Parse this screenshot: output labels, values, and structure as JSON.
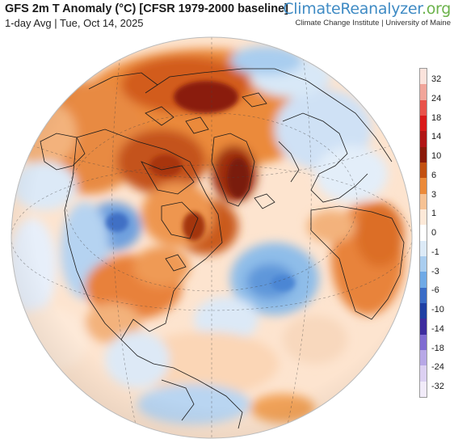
{
  "header": {
    "title": "GFS 2m T Anomaly (°C) [CFSR 1979-2000 baseline]",
    "subtitle": "1-day Avg | Tue, Oct 14, 2025"
  },
  "brand": {
    "part1": "Climate",
    "part2": "Reanalyzer",
    "part3": ".org",
    "subtitle": "Climate Change Institute | University of Maine"
  },
  "legend": {
    "labels": [
      "32",
      "24",
      "18",
      "14",
      "10",
      "6",
      "3",
      "1",
      "0",
      "-1",
      "-3",
      "-6",
      "-10",
      "-14",
      "-18",
      "-24",
      "-32"
    ],
    "colors": [
      "#fbe3dc",
      "#f1a59a",
      "#e8524a",
      "#d91a1a",
      "#b01515",
      "#8a1a0a",
      "#c24f10",
      "#eb8a3a",
      "#f6c294",
      "#fde9d8",
      "#ffffff",
      "#dceaf7",
      "#a9cdef",
      "#6fa9e6",
      "#3a6cc6",
      "#1f3fa3",
      "#3d2c9e",
      "#7f6bd1",
      "#b7a7e6",
      "#dcd0f2",
      "#f1ebf9"
    ]
  },
  "map": {
    "projection": "orthographic",
    "center": "North Atlantic / Arctic",
    "colors": {
      "ocean_warm": "#fde4cf",
      "warm": "#f3a466",
      "hot": "#e27a2c",
      "very_hot": "#b74312",
      "extreme": "#8c1d0c",
      "cool": "#d8e8f7",
      "cold": "#8fbde9",
      "very_cold": "#4f84cf",
      "coast": "#1b1b1b"
    }
  }
}
